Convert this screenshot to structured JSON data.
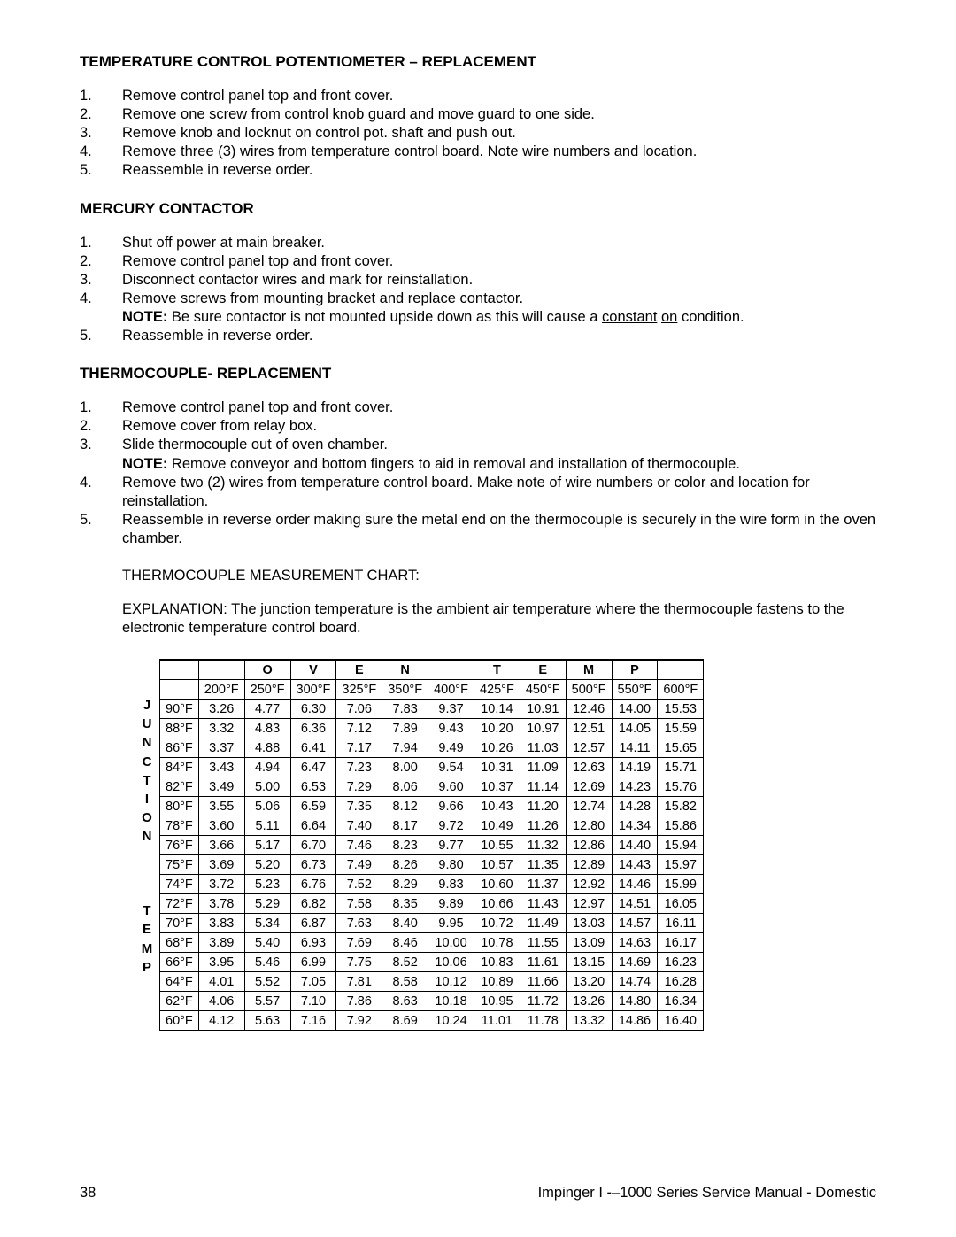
{
  "sections": {
    "s1": {
      "title": "TEMPERATURE CONTROL POTENTIOMETER – REPLACEMENT",
      "steps": [
        "Remove control panel top and front cover.",
        "Remove one screw from control knob guard and move guard to one side.",
        "Remove knob and locknut on control pot. shaft and push out.",
        "Remove three (3) wires from temperature control board. Note wire numbers and location.",
        "Reassemble in reverse order."
      ]
    },
    "s2": {
      "title": "MERCURY CONTACTOR",
      "steps": [
        "Shut off power at main breaker.",
        "Remove control panel top and front cover.",
        "Disconnect contactor wires and mark for reinstallation.",
        "Remove screws from mounting bracket and replace contactor.",
        "Reassemble in reverse order."
      ],
      "note4_label": "NOTE:",
      "note4_text_a": " Be sure contactor is not mounted upside down as this will cause a ",
      "note4_u1": "constant",
      "note4_mid": " ",
      "note4_u2": "on",
      "note4_text_b": " condition."
    },
    "s3": {
      "title": "THERMOCOUPLE- REPLACEMENT",
      "steps": [
        "Remove control panel top and front cover.",
        "Remove cover from relay box.",
        "Slide thermocouple out of oven chamber.",
        "Remove two (2) wires from temperature control board. Make note of wire numbers or color and location for reinstallation.",
        "Reassemble in reverse order making sure the metal end on the thermocouple is securely in the wire form in the oven chamber."
      ],
      "note3_label": "NOTE:",
      "note3_text": " Remove conveyor and bottom fingers to aid in removal and installation of thermocouple."
    }
  },
  "chart_caption": "THERMOCOUPLE MEASUREMENT CHART:",
  "explanation": "EXPLANATION: The junction temperature is the ambient air temperature where the thermocouple fastens to the electronic temperature control board.",
  "left_label_1": "JUNCTION",
  "left_label_2": "TEMP",
  "chart": {
    "top_letters": [
      "",
      "",
      "O",
      "V",
      "E",
      "N",
      "",
      "T",
      "E",
      "M",
      "P",
      ""
    ],
    "col_temps": [
      "",
      "200°F",
      "250°F",
      "300°F",
      "325°F",
      "350°F",
      "400°F",
      "425°F",
      "450°F",
      "500°F",
      "550°F",
      "600°F"
    ],
    "rows": [
      {
        "t": "90°F",
        "v": [
          "3.26",
          "4.77",
          "6.30",
          "7.06",
          "7.83",
          "9.37",
          "10.14",
          "10.91",
          "12.46",
          "14.00",
          "15.53"
        ]
      },
      {
        "t": "88°F",
        "v": [
          "3.32",
          "4.83",
          "6.36",
          "7.12",
          "7.89",
          "9.43",
          "10.20",
          "10.97",
          "12.51",
          "14.05",
          "15.59"
        ]
      },
      {
        "t": "86°F",
        "v": [
          "3.37",
          "4.88",
          "6.41",
          "7.17",
          "7.94",
          "9.49",
          "10.26",
          "11.03",
          "12.57",
          "14.11",
          "15.65"
        ]
      },
      {
        "t": "84°F",
        "v": [
          "3.43",
          "4.94",
          "6.47",
          "7.23",
          "8.00",
          "9.54",
          "10.31",
          "11.09",
          "12.63",
          "14.19",
          "15.71"
        ]
      },
      {
        "t": "82°F",
        "v": [
          "3.49",
          "5.00",
          "6.53",
          "7.29",
          "8.06",
          "9.60",
          "10.37",
          "11.14",
          "12.69",
          "14.23",
          "15.76"
        ]
      },
      {
        "t": "80°F",
        "v": [
          "3.55",
          "5.06",
          "6.59",
          "7.35",
          "8.12",
          "9.66",
          "10.43",
          "11.20",
          "12.74",
          "14.28",
          "15.82"
        ]
      },
      {
        "t": "78°F",
        "v": [
          "3.60",
          "5.11",
          "6.64",
          "7.40",
          "8.17",
          "9.72",
          "10.49",
          "11.26",
          "12.80",
          "14.34",
          "15.86"
        ]
      },
      {
        "t": "76°F",
        "v": [
          "3.66",
          "5.17",
          "6.70",
          "7.46",
          "8.23",
          "9.77",
          "10.55",
          "11.32",
          "12.86",
          "14.40",
          "15.94"
        ]
      },
      {
        "t": "75°F",
        "v": [
          "3.69",
          "5.20",
          "6.73",
          "7.49",
          "8.26",
          "9.80",
          "10.57",
          "11.35",
          "12.89",
          "14.43",
          "15.97"
        ]
      },
      {
        "t": "74°F",
        "v": [
          "3.72",
          "5.23",
          "6.76",
          "7.52",
          "8.29",
          "9.83",
          "10.60",
          "11.37",
          "12.92",
          "14.46",
          "15.99"
        ]
      },
      {
        "t": "72°F",
        "v": [
          "3.78",
          "5.29",
          "6.82",
          "7.58",
          "8.35",
          "9.89",
          "10.66",
          "11.43",
          "12.97",
          "14.51",
          "16.05"
        ]
      },
      {
        "t": "70°F",
        "v": [
          "3.83",
          "5.34",
          "6.87",
          "7.63",
          "8.40",
          "9.95",
          "10.72",
          "11.49",
          "13.03",
          "14.57",
          "16.11"
        ]
      },
      {
        "t": "68°F",
        "v": [
          "3.89",
          "5.40",
          "6.93",
          "7.69",
          "8.46",
          "10.00",
          "10.78",
          "11.55",
          "13.09",
          "14.63",
          "16.17"
        ]
      },
      {
        "t": "66°F",
        "v": [
          "3.95",
          "5.46",
          "6.99",
          "7.75",
          "8.52",
          "10.06",
          "10.83",
          "11.61",
          "13.15",
          "14.69",
          "16.23"
        ]
      },
      {
        "t": "64°F",
        "v": [
          "4.01",
          "5.52",
          "7.05",
          "7.81",
          "8.58",
          "10.12",
          "10.89",
          "11.66",
          "13.20",
          "14.74",
          "16.28"
        ]
      },
      {
        "t": "62°F",
        "v": [
          "4.06",
          "5.57",
          "7.10",
          "7.86",
          "8.63",
          "10.18",
          "10.95",
          "11.72",
          "13.26",
          "14.80",
          "16.34"
        ]
      },
      {
        "t": "60°F",
        "v": [
          "4.12",
          "5.63",
          "7.16",
          "7.92",
          "8.69",
          "10.24",
          "11.01",
          "11.78",
          "13.32",
          "14.86",
          "16.40"
        ]
      }
    ]
  },
  "footer": {
    "page": "38",
    "title": "Impinger I -–1000 Series Service Manual - Domestic"
  }
}
